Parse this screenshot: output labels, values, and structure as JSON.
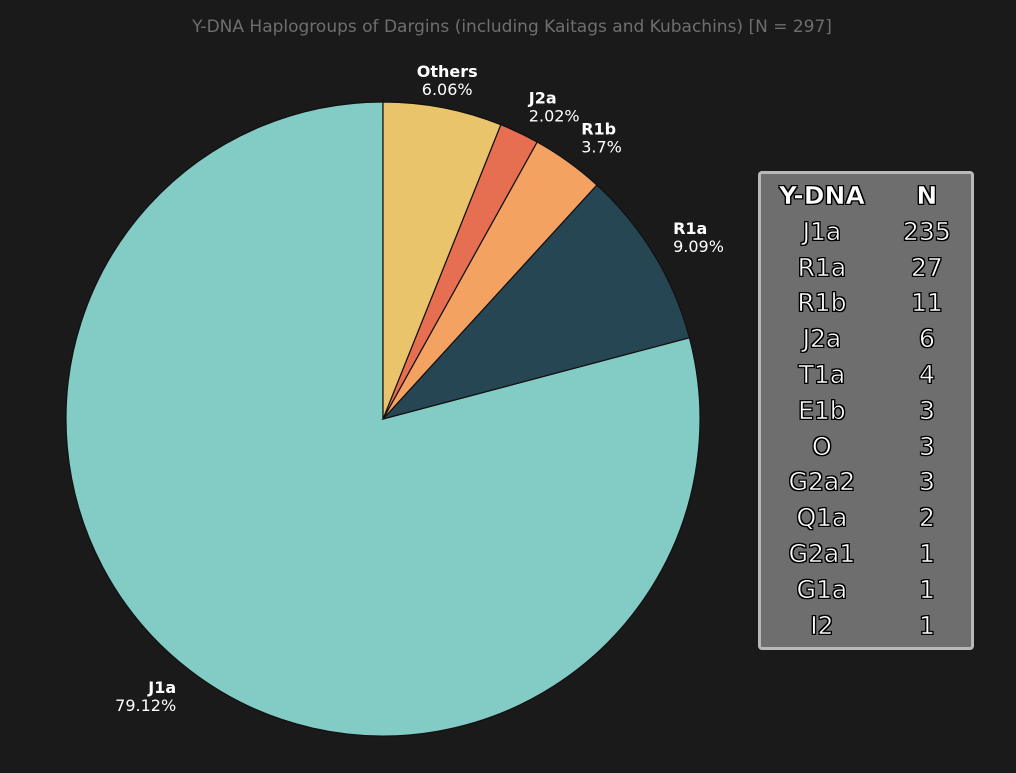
{
  "chart_data": {
    "type": "pie",
    "title": "Y-DNA Haplogroups of Dargins (including Kaitags and Kubachins) [N = 297]",
    "slices": [
      {
        "label": "J1a",
        "percent": "79.12%",
        "value": 235,
        "color": "#82ccc5"
      },
      {
        "label": "R1a",
        "percent": "9.09%",
        "value": 27,
        "color": "#264653"
      },
      {
        "label": "R1b",
        "percent": "3.7%",
        "value": 11,
        "color": "#f4a261"
      },
      {
        "label": "J2a",
        "percent": "2.02%",
        "value": 6,
        "color": "#e76f51"
      },
      {
        "label": "Others",
        "percent": "6.06%",
        "value": 18,
        "color": "#e9c46a"
      }
    ],
    "start_angle_deg": 90,
    "direction": "counterclockwise",
    "table": {
      "headers": [
        "Y-DNA",
        "N"
      ],
      "rows": [
        [
          "J1a",
          "235"
        ],
        [
          "R1a",
          "27"
        ],
        [
          "R1b",
          "11"
        ],
        [
          "J2a",
          "6"
        ],
        [
          "T1a",
          "4"
        ],
        [
          "E1b",
          "3"
        ],
        [
          "O",
          "3"
        ],
        [
          "G2a2",
          "3"
        ],
        [
          "Q1a",
          "2"
        ],
        [
          "G2a1",
          "1"
        ],
        [
          "G1a",
          "1"
        ],
        [
          "I2",
          "1"
        ]
      ]
    }
  }
}
